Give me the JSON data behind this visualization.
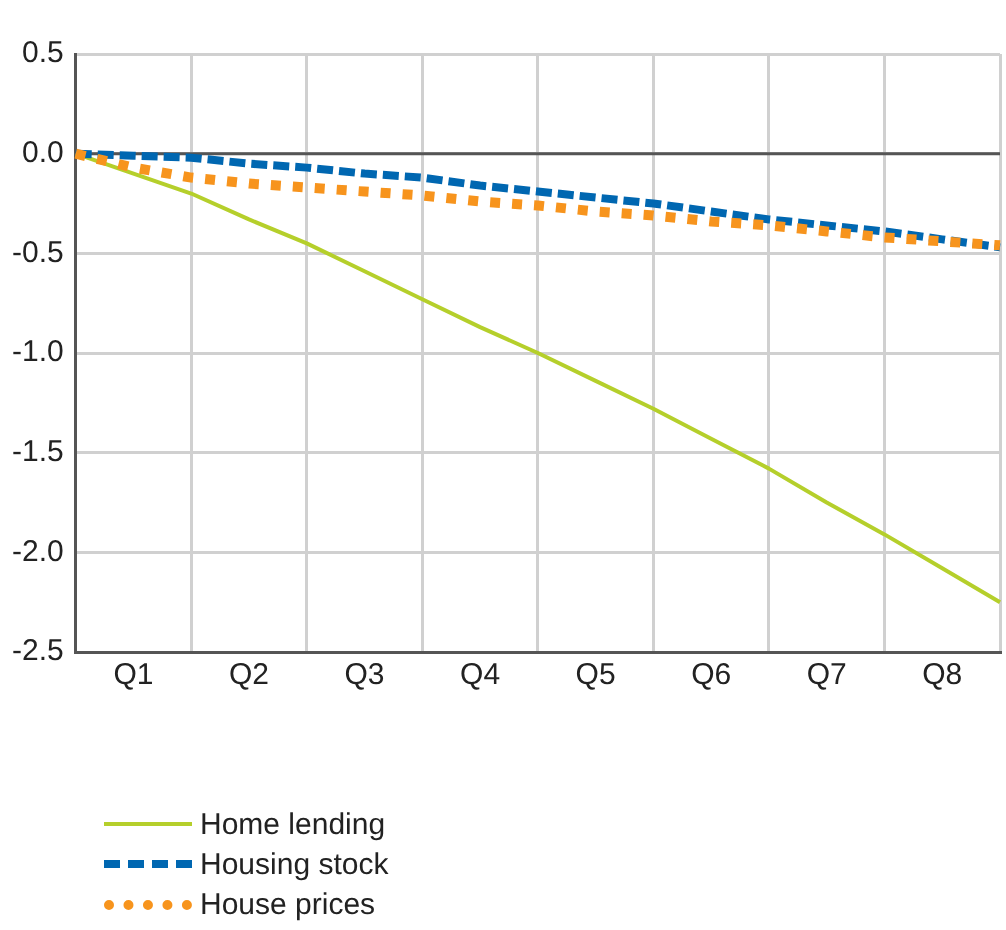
{
  "chart_data": {
    "type": "line",
    "categories": [
      null,
      "Q1",
      null,
      "Q2",
      null,
      "Q3",
      null,
      "Q4",
      null,
      "Q5",
      null,
      "Q6",
      null,
      "Q7",
      null,
      "Q8",
      null
    ],
    "ylim": [
      -2.5,
      0.5
    ],
    "yticks": [
      {
        "value": -2.5,
        "label": "-2.5"
      },
      {
        "value": -2,
        "label": "-2.0"
      },
      {
        "value": -1.5,
        "label": "-1.5"
      },
      {
        "value": -1,
        "label": "-1.0"
      },
      {
        "value": -0.5,
        "label": "-0.5"
      },
      {
        "value": 0,
        "label": "0.0"
      },
      {
        "value": 0.5,
        "label": "0.5"
      }
    ],
    "grid": true,
    "legend": "bottom",
    "marker": "none",
    "ref_lines": [
      {
        "axis": "y",
        "value": 0,
        "color": "#555555"
      }
    ],
    "series": [
      {
        "name": "Home lending",
        "color": "#b5cf2b",
        "line_style": "solid",
        "values": [
          0,
          -0.1,
          -0.2,
          -0.33,
          -0.45,
          -0.59,
          -0.73,
          -0.87,
          -1.0,
          -1.14,
          -1.28,
          -1.43,
          -1.58,
          -1.75,
          -1.91,
          -2.08,
          -2.25
        ]
      },
      {
        "name": "Housing stock",
        "color": "#0067b1",
        "line_style": "dashed",
        "values": [
          0,
          -0.01,
          -0.02,
          -0.05,
          -0.07,
          -0.1,
          -0.12,
          -0.16,
          -0.19,
          -0.22,
          -0.25,
          -0.29,
          -0.33,
          -0.36,
          -0.39,
          -0.43,
          -0.47
        ]
      },
      {
        "name": "House prices",
        "color": "#f7941d",
        "line_style": "dotted",
        "values": [
          0,
          -0.07,
          -0.12,
          -0.15,
          -0.17,
          -0.19,
          -0.21,
          -0.24,
          -0.26,
          -0.29,
          -0.31,
          -0.34,
          -0.36,
          -0.39,
          -0.42,
          -0.44,
          -0.46
        ]
      }
    ]
  }
}
